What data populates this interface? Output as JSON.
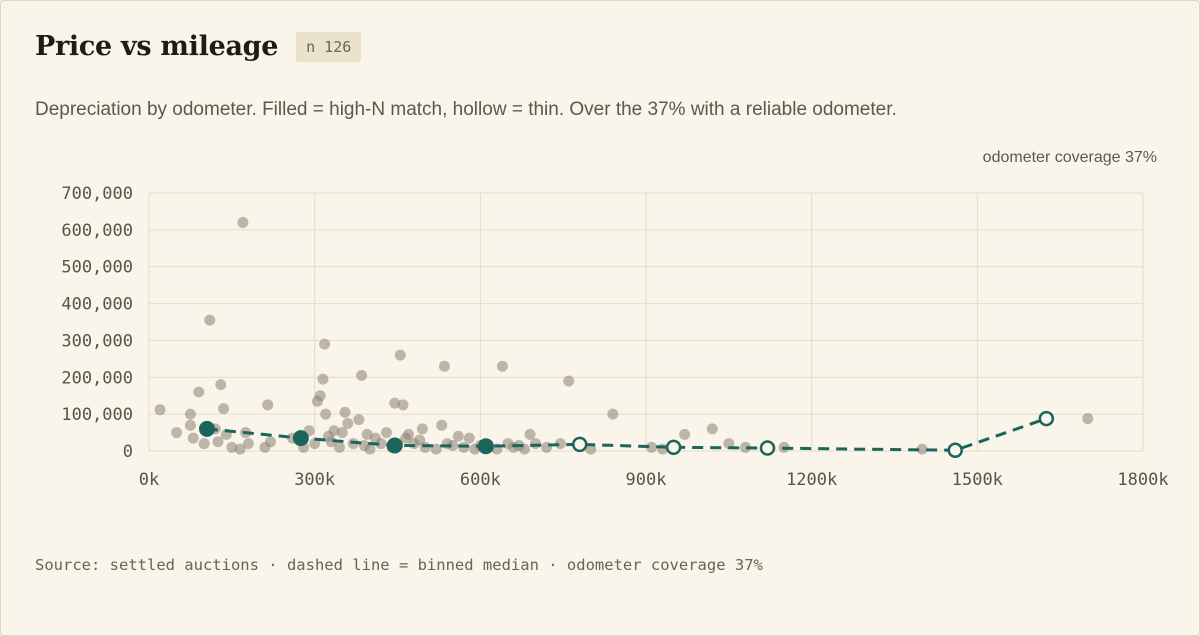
{
  "header": {
    "title": "Price vs mileage",
    "badge": "n 126"
  },
  "subtitle": "Depreciation by odometer. Filled = high-N match, hollow = thin. Over the 37% with a reliable odometer.",
  "coverage_label": "odometer coverage 37%",
  "footer": "Source: settled auctions · dashed line = binned median · odometer coverage 37%",
  "colors": {
    "median": "#1b665c",
    "points": "#8a8171",
    "grid": "#e6dcc3"
  },
  "chart_data": {
    "type": "scatter",
    "xlim": [
      0,
      1800000
    ],
    "ylim": [
      0,
      700000
    ],
    "x_ticks": [
      {
        "value": 0,
        "label": "0k"
      },
      {
        "value": 300000,
        "label": "300k"
      },
      {
        "value": 600000,
        "label": "600k"
      },
      {
        "value": 900000,
        "label": "900k"
      },
      {
        "value": 1200000,
        "label": "1200k"
      },
      {
        "value": 1500000,
        "label": "1500k"
      },
      {
        "value": 1800000,
        "label": "1800k"
      }
    ],
    "y_ticks": [
      {
        "value": 0,
        "label": "0"
      },
      {
        "value": 100000,
        "label": "100,000"
      },
      {
        "value": 200000,
        "label": "200,000"
      },
      {
        "value": 300000,
        "label": "300,000"
      },
      {
        "value": 400000,
        "label": "400,000"
      },
      {
        "value": 500000,
        "label": "500,000"
      },
      {
        "value": 600000,
        "label": "600,000"
      },
      {
        "value": 700000,
        "label": "700,000"
      }
    ],
    "points": [
      [
        20000,
        112000
      ],
      [
        50000,
        50000
      ],
      [
        75000,
        100000
      ],
      [
        80000,
        35000
      ],
      [
        75000,
        70000
      ],
      [
        90000,
        160000
      ],
      [
        100000,
        20000
      ],
      [
        110000,
        355000
      ],
      [
        120000,
        60000
      ],
      [
        125000,
        25000
      ],
      [
        130000,
        180000
      ],
      [
        135000,
        115000
      ],
      [
        140000,
        45000
      ],
      [
        150000,
        10000
      ],
      [
        165000,
        5000
      ],
      [
        170000,
        620000
      ],
      [
        175000,
        50000
      ],
      [
        180000,
        20000
      ],
      [
        210000,
        10000
      ],
      [
        215000,
        125000
      ],
      [
        220000,
        25000
      ],
      [
        260000,
        35000
      ],
      [
        280000,
        10000
      ],
      [
        290000,
        55000
      ],
      [
        300000,
        20000
      ],
      [
        305000,
        135000
      ],
      [
        310000,
        150000
      ],
      [
        315000,
        195000
      ],
      [
        318000,
        290000
      ],
      [
        320000,
        100000
      ],
      [
        325000,
        40000
      ],
      [
        330000,
        25000
      ],
      [
        335000,
        55000
      ],
      [
        345000,
        10000
      ],
      [
        350000,
        50000
      ],
      [
        355000,
        105000
      ],
      [
        360000,
        75000
      ],
      [
        370000,
        20000
      ],
      [
        380000,
        85000
      ],
      [
        385000,
        205000
      ],
      [
        390000,
        15000
      ],
      [
        395000,
        45000
      ],
      [
        400000,
        5000
      ],
      [
        410000,
        35000
      ],
      [
        420000,
        20000
      ],
      [
        430000,
        50000
      ],
      [
        440000,
        10000
      ],
      [
        445000,
        130000
      ],
      [
        450000,
        20000
      ],
      [
        455000,
        260000
      ],
      [
        460000,
        125000
      ],
      [
        465000,
        35000
      ],
      [
        470000,
        45000
      ],
      [
        480000,
        20000
      ],
      [
        490000,
        30000
      ],
      [
        495000,
        60000
      ],
      [
        500000,
        10000
      ],
      [
        520000,
        5000
      ],
      [
        530000,
        70000
      ],
      [
        535000,
        230000
      ],
      [
        540000,
        20000
      ],
      [
        550000,
        15000
      ],
      [
        560000,
        40000
      ],
      [
        570000,
        10000
      ],
      [
        580000,
        35000
      ],
      [
        590000,
        5000
      ],
      [
        600000,
        15000
      ],
      [
        615000,
        10000
      ],
      [
        630000,
        5000
      ],
      [
        640000,
        230000
      ],
      [
        650000,
        20000
      ],
      [
        660000,
        10000
      ],
      [
        670000,
        15000
      ],
      [
        680000,
        5000
      ],
      [
        690000,
        45000
      ],
      [
        700000,
        20000
      ],
      [
        720000,
        10000
      ],
      [
        745000,
        20000
      ],
      [
        760000,
        190000
      ],
      [
        800000,
        5000
      ],
      [
        840000,
        100000
      ],
      [
        910000,
        10000
      ],
      [
        930000,
        5000
      ],
      [
        970000,
        45000
      ],
      [
        1020000,
        60000
      ],
      [
        1050000,
        20000
      ],
      [
        1080000,
        10000
      ],
      [
        1150000,
        10000
      ],
      [
        1400000,
        5000
      ],
      [
        1700000,
        88000
      ]
    ],
    "median": [
      {
        "x": 105000,
        "y": 60000,
        "filled": true
      },
      {
        "x": 275000,
        "y": 35000,
        "filled": true
      },
      {
        "x": 445000,
        "y": 15000,
        "filled": true
      },
      {
        "x": 610000,
        "y": 13000,
        "filled": true
      },
      {
        "x": 780000,
        "y": 18000,
        "filled": false
      },
      {
        "x": 950000,
        "y": 10000,
        "filled": false
      },
      {
        "x": 1120000,
        "y": 8000,
        "filled": false
      },
      {
        "x": 1460000,
        "y": 2000,
        "filled": false
      },
      {
        "x": 1625000,
        "y": 88000,
        "filled": false
      }
    ]
  }
}
